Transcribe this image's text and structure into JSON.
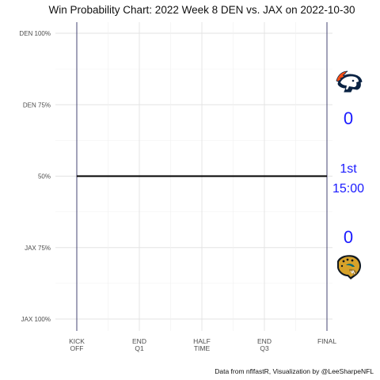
{
  "chart_data": {
    "type": "line",
    "title": "Win Probability Chart: 2022 Week 8 DEN vs. JAX on 2022-10-30",
    "y_ticks": [
      {
        "label": "DEN 100%",
        "value": 100
      },
      {
        "label": "DEN 75%",
        "value": 75
      },
      {
        "label": "50%",
        "value": 50
      },
      {
        "label": "JAX 75%",
        "value": 25
      },
      {
        "label": "JAX 100%",
        "value": 0
      }
    ],
    "x_ticks": [
      {
        "lines": [
          "KICK",
          "OFF"
        ],
        "value": 0
      },
      {
        "lines": [
          "END",
          "Q1"
        ],
        "value": 900
      },
      {
        "lines": [
          "HALF",
          "TIME"
        ],
        "value": 1800
      },
      {
        "lines": [
          "END",
          "Q3"
        ],
        "value": 2700
      },
      {
        "lines": [
          "FINAL"
        ],
        "value": 3600
      }
    ],
    "xlim": [
      0,
      3600
    ],
    "ylim": [
      0,
      100
    ],
    "grid": true,
    "series": [
      {
        "x": [
          0,
          3600
        ],
        "values": [
          50,
          50
        ],
        "color": "#000000"
      }
    ],
    "vlines": [
      0,
      3600
    ],
    "scoreboard": {
      "home_score": "0",
      "away_score": "0",
      "quarter": "1st",
      "clock": "15:00",
      "home_logo": "broncos-logo-icon",
      "away_logo": "jaguars-logo-icon",
      "text_color": "#1a1aff"
    },
    "caption": "Data from nflfastR, Visualization by @LeeSharpeNFL"
  }
}
